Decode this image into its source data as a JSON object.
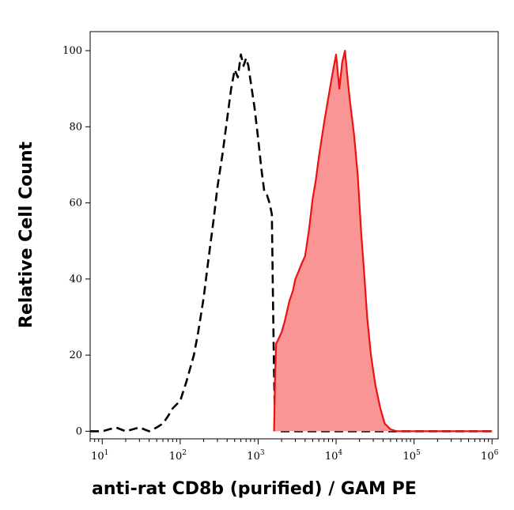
{
  "chart_data": {
    "type": "area",
    "xlabel": "anti-rat CD8b (purified)  / GAM PE",
    "ylabel": "Relative Cell Count",
    "x_scale": "log",
    "xlim": [
      7,
      1200000
    ],
    "ylim": [
      -2,
      105
    ],
    "y_ticks": [
      0,
      20,
      40,
      60,
      80,
      100
    ],
    "x_ticks": [
      {
        "value": 10,
        "base": "10",
        "exp": "1"
      },
      {
        "value": 100,
        "base": "10",
        "exp": "2"
      },
      {
        "value": 1000,
        "base": "10",
        "exp": "3"
      },
      {
        "value": 10000,
        "base": "10",
        "exp": "4"
      },
      {
        "value": 100000,
        "base": "10",
        "exp": "5"
      },
      {
        "value": 1000000,
        "base": "10",
        "exp": "6"
      }
    ],
    "grid": false,
    "series": [
      {
        "style": "dashed",
        "color": "#000000",
        "fill": "none",
        "x": [
          7,
          10,
          15,
          20,
          30,
          40,
          50,
          60,
          70,
          80,
          100,
          120,
          150,
          170,
          200,
          230,
          270,
          300,
          350,
          400,
          450,
          500,
          550,
          600,
          650,
          700,
          750,
          800,
          900,
          1000,
          1100,
          1200,
          1300,
          1400,
          1500,
          1550,
          1600,
          1650,
          1700,
          2000,
          5000,
          1000000
        ],
        "y": [
          0,
          0,
          1,
          0,
          1,
          0,
          1,
          2,
          4,
          6,
          8,
          13,
          20,
          26,
          35,
          45,
          56,
          64,
          73,
          82,
          90,
          95,
          93,
          99,
          96,
          98,
          96,
          92,
          85,
          77,
          69,
          63,
          62,
          60,
          57,
          35,
          15,
          2,
          0,
          0,
          0,
          0
        ]
      },
      {
        "style": "solid",
        "color": "#ee1111",
        "fill": "#f99595",
        "x": [
          1600,
          1650,
          1700,
          1800,
          2000,
          2200,
          2500,
          2800,
          3000,
          3300,
          3600,
          4000,
          4500,
          5000,
          5500,
          6000,
          7000,
          8000,
          9000,
          10000,
          11000,
          12000,
          13000,
          14000,
          15000,
          17000,
          19000,
          21000,
          23000,
          25000,
          28000,
          32000,
          37000,
          42000,
          50000,
          60000,
          1000000
        ],
        "y": [
          0,
          15,
          23,
          24,
          26,
          29,
          34,
          37,
          40,
          42,
          44,
          46,
          53,
          61,
          66,
          72,
          81,
          88,
          94,
          99,
          90,
          97,
          100,
          93,
          87,
          78,
          67,
          52,
          41,
          30,
          20,
          12,
          6,
          2,
          0.5,
          0,
          0
        ]
      }
    ]
  }
}
